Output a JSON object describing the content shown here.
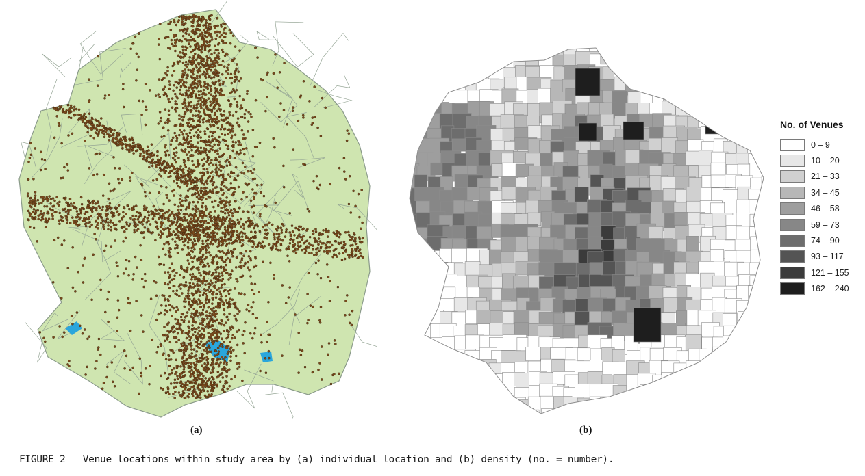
{
  "panel_a": {
    "label": "(a)"
  },
  "panel_b": {
    "label": "(b)"
  },
  "legend": {
    "title": "No. of Venues",
    "classes": [
      {
        "range": "0 – 9",
        "color": "#ffffff"
      },
      {
        "range": "10 – 20",
        "color": "#e7e7e7"
      },
      {
        "range": "21 – 33",
        "color": "#d0d0d0"
      },
      {
        "range": "34 – 45",
        "color": "#b7b7b7"
      },
      {
        "range": "46 – 58",
        "color": "#9e9e9e"
      },
      {
        "range": "59 – 73",
        "color": "#878787"
      },
      {
        "range": "74 – 90",
        "color": "#6d6d6d"
      },
      {
        "range": "93 – 117",
        "color": "#545454"
      },
      {
        "range": "121 – 155",
        "color": "#3b3b3b"
      },
      {
        "range": "162 – 240",
        "color": "#1e1e1e"
      }
    ]
  },
  "caption": {
    "figure_number": "FIGURE 2",
    "text": "Venue locations within study area by (a) individual location and (b) density (no. = number)."
  },
  "colors": {
    "study_area_fill": "#cfe5b0",
    "boundary_line": "#8a9a8a",
    "venue_point": "#7a4a1c",
    "water_fill": "#2aa6dc"
  }
}
